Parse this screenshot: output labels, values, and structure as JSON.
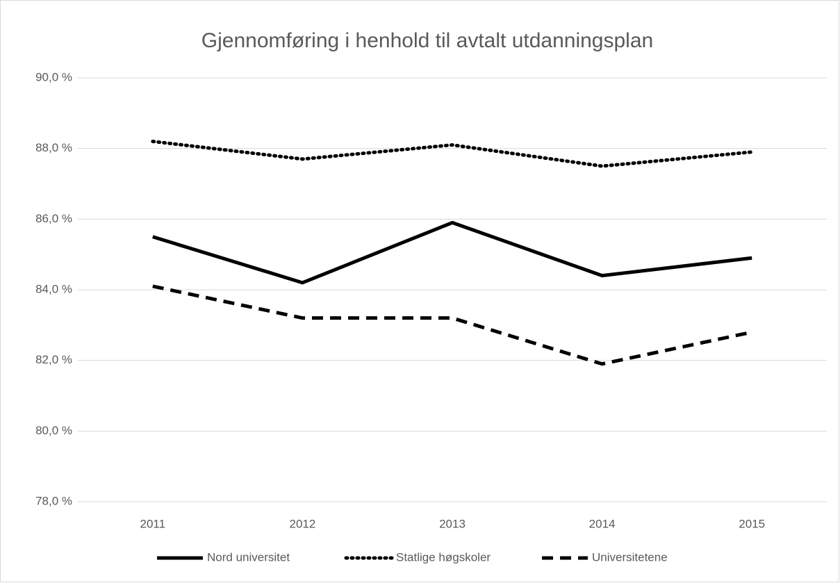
{
  "chart_data": {
    "type": "line",
    "title": "Gjennomføring i henhold til avtalt utdanningsplan",
    "categories": [
      "2011",
      "2012",
      "2013",
      "2014",
      "2015"
    ],
    "series": [
      {
        "name": "Nord universitet",
        "color": "#000000",
        "dash": "solid",
        "values": [
          85.5,
          84.2,
          85.9,
          84.4,
          84.9
        ]
      },
      {
        "name": "Statlige høgskoler",
        "color": "#000000",
        "dash": "dot",
        "values": [
          88.2,
          87.7,
          88.1,
          87.5,
          87.9
        ]
      },
      {
        "name": "Universitetene",
        "color": "#000000",
        "dash": "dash",
        "values": [
          84.1,
          83.2,
          83.2,
          81.9,
          82.8
        ]
      }
    ],
    "ylim": [
      78,
      90
    ],
    "yticks": [
      {
        "value": 78,
        "label": "78,0 %"
      },
      {
        "value": 80,
        "label": "80,0 %"
      },
      {
        "value": 82,
        "label": "82,0 %"
      },
      {
        "value": 84,
        "label": "84,0 %"
      },
      {
        "value": 86,
        "label": "86,0 %"
      },
      {
        "value": 88,
        "label": "88,0 %"
      },
      {
        "value": 90,
        "label": "90,0 %"
      }
    ],
    "grid": true,
    "legend": "bottom"
  }
}
